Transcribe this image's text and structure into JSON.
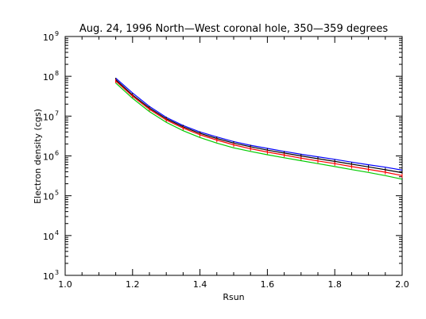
{
  "chart_data": {
    "type": "line",
    "title": "Aug. 24, 1996 North—West coronal hole, 350—359 degrees",
    "xlabel": "Rsun",
    "ylabel": "Electron density (cgs)",
    "xlim": [
      1.0,
      2.0
    ],
    "ylim": [
      1000,
      1000000000
    ],
    "yscale": "log",
    "x_ticks": [
      "1.0",
      "1.2",
      "1.4",
      "1.6",
      "1.8",
      "2.0"
    ],
    "y_ticks": [
      {
        "base": "10",
        "exp": "3"
      },
      {
        "base": "10",
        "exp": "4"
      },
      {
        "base": "10",
        "exp": "5"
      },
      {
        "base": "10",
        "exp": "6"
      },
      {
        "base": "10",
        "exp": "7"
      },
      {
        "base": "10",
        "exp": "8"
      },
      {
        "base": "10",
        "exp": "9"
      }
    ],
    "x": [
      1.15,
      1.2,
      1.25,
      1.3,
      1.35,
      1.4,
      1.45,
      1.5,
      1.55,
      1.6,
      1.65,
      1.7,
      1.75,
      1.8,
      1.85,
      1.9,
      1.95,
      2.0
    ],
    "series": [
      {
        "color": "#0000ff",
        "style": "line",
        "values": [
          90000000,
          38000000,
          17500000,
          9300000,
          5800000,
          4000000,
          3000000,
          2300000,
          1850000,
          1550000,
          1300000,
          1100000,
          950000,
          820000,
          700000,
          600000,
          520000,
          440000
        ]
      },
      {
        "color": "#000000",
        "style": "errorbar",
        "values": [
          82000000,
          34000000,
          16000000,
          8600000,
          5400000,
          3700000,
          2750000,
          2100000,
          1700000,
          1400000,
          1180000,
          1000000,
          850000,
          730000,
          620000,
          530000,
          450000,
          380000
        ]
      },
      {
        "color": "#ff0000",
        "style": "errorbar",
        "values": [
          76000000,
          31500000,
          14800000,
          8000000,
          5000000,
          3400000,
          2500000,
          1900000,
          1520000,
          1250000,
          1050000,
          880000,
          750000,
          640000,
          540000,
          460000,
          390000,
          320000
        ]
      },
      {
        "color": "#00cc00",
        "style": "line",
        "values": [
          68000000,
          28000000,
          13000000,
          7000000,
          4300000,
          2900000,
          2100000,
          1600000,
          1300000,
          1070000,
          900000,
          760000,
          640000,
          540000,
          455000,
          385000,
          320000,
          260000
        ]
      }
    ],
    "errorbar_fraction": 0.12,
    "grid": false,
    "legend": "none"
  }
}
